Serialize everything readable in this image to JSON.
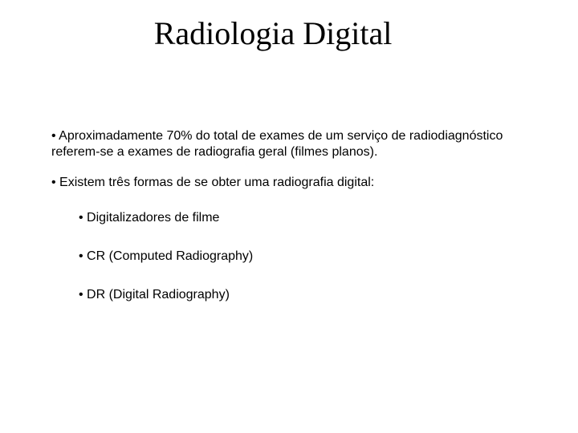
{
  "title": "Radiologia Digital",
  "bullets": {
    "b1": "• Aproximadamente 70% do total de exames de um serviço de radiodiagnóstico referem-se a exames de radiografia geral (filmes planos).",
    "b2": "•  Existem três formas de se obter uma radiografia digital:",
    "sub1": "• Digitalizadores de filme",
    "sub2": "• CR (Computed Radiography)",
    "sub3": "• DR (Digital Radiography)"
  },
  "colors": {
    "background": "#ffffff",
    "text": "#000000"
  },
  "fonts": {
    "title_family": "Times New Roman",
    "title_size_pt": 30,
    "body_family": "Verdana",
    "body_size_pt": 12
  }
}
